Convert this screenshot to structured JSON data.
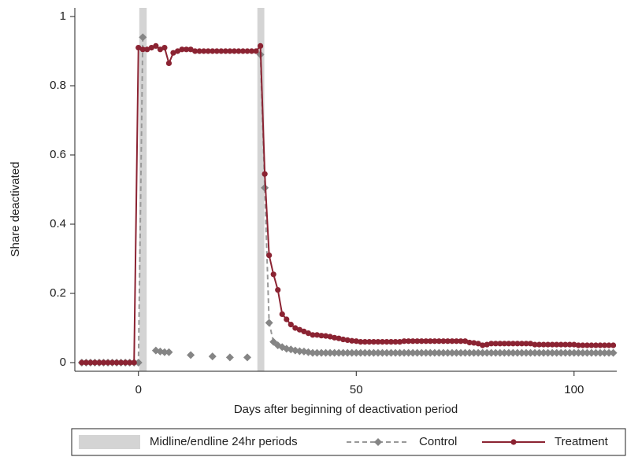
{
  "chart_data": {
    "type": "line",
    "x_label": "Days after beginning of deactivation period",
    "y_label": "Share deactivated",
    "xlim": [
      -14.6,
      109.8
    ],
    "ylim": [
      -0.025,
      1.025
    ],
    "xticks": [
      0,
      50,
      100
    ],
    "yticks": [
      0,
      0.2,
      0.4,
      0.6,
      0.8,
      1
    ],
    "shaded_periods": {
      "name": "Midline/endline 24hr periods",
      "color": "#d4d4d4",
      "ranges": [
        [
          0.2,
          1.9
        ],
        [
          27.3,
          28.9
        ]
      ]
    },
    "legend": "bottom",
    "x": [
      -13,
      -12,
      -11,
      -10,
      -9,
      -8,
      -7,
      -6,
      -5,
      -4,
      -3,
      -2,
      -1,
      0,
      1,
      2,
      3,
      4,
      5,
      6,
      7,
      8,
      9,
      10,
      11,
      12,
      13,
      14,
      15,
      16,
      17,
      18,
      19,
      20,
      21,
      22,
      23,
      24,
      25,
      26,
      27,
      28,
      29,
      30,
      31,
      32,
      33,
      34,
      35,
      36,
      37,
      38,
      39,
      40,
      41,
      42,
      43,
      44,
      45,
      46,
      47,
      48,
      49,
      50,
      51,
      52,
      53,
      54,
      55,
      56,
      57,
      58,
      59,
      60,
      61,
      62,
      63,
      64,
      65,
      66,
      67,
      68,
      69,
      70,
      71,
      72,
      73,
      74,
      75,
      76,
      77,
      78,
      79,
      80,
      81,
      82,
      83,
      84,
      85,
      86,
      87,
      88,
      89,
      90,
      91,
      92,
      93,
      94,
      95,
      96,
      97,
      98,
      99,
      100,
      101,
      102,
      103,
      104,
      105,
      106,
      107,
      108,
      109
    ],
    "series": [
      {
        "name": "Control",
        "color": "#858585",
        "dashed": true,
        "marker": "diamond",
        "values": [
          0,
          0,
          0,
          0,
          0,
          0,
          0,
          0,
          0,
          0,
          0,
          0,
          0,
          0,
          0.94,
          null,
          null,
          0.035,
          0.032,
          0.03,
          0.03,
          null,
          null,
          null,
          null,
          0.022,
          null,
          null,
          null,
          null,
          0.018,
          null,
          null,
          null,
          0.015,
          null,
          null,
          null,
          0.015,
          null,
          null,
          0.89,
          0.505,
          0.115,
          0.06,
          0.05,
          0.045,
          0.04,
          0.038,
          0.035,
          0.033,
          0.032,
          0.03,
          0.028,
          0.028,
          0.028,
          0.028,
          0.028,
          0.028,
          0.028,
          0.028,
          0.028,
          0.028,
          0.028,
          0.028,
          0.028,
          0.028,
          0.028,
          0.028,
          0.028,
          0.028,
          0.028,
          0.028,
          0.028,
          0.028,
          0.028,
          0.028,
          0.028,
          0.028,
          0.028,
          0.028,
          0.028,
          0.028,
          0.028,
          0.028,
          0.028,
          0.028,
          0.028,
          0.028,
          0.028,
          0.028,
          0.028,
          0.028,
          0.028,
          0.028,
          0.028,
          0.028,
          0.028,
          0.028,
          0.028,
          0.028,
          0.028,
          0.028,
          0.028,
          0.028,
          0.028,
          0.028,
          0.028,
          0.028,
          0.028,
          0.028,
          0.028,
          0.028,
          0.028,
          0.028,
          0.028,
          0.028,
          0.028,
          0.028,
          0.028,
          0.028,
          0.028,
          0.028
        ]
      },
      {
        "name": "Treatment",
        "color": "#8b2332",
        "dashed": false,
        "marker": "circle",
        "values": [
          0,
          0,
          0,
          0,
          0,
          0,
          0,
          0,
          0,
          0,
          0,
          0,
          0,
          0.91,
          0.905,
          0.905,
          0.91,
          0.915,
          0.905,
          0.91,
          0.865,
          0.895,
          0.9,
          0.905,
          0.905,
          0.905,
          0.9,
          0.9,
          0.9,
          0.9,
          0.9,
          0.9,
          0.9,
          0.9,
          0.9,
          0.9,
          0.9,
          0.9,
          0.9,
          0.9,
          0.9,
          0.915,
          0.545,
          0.31,
          0.255,
          0.21,
          0.14,
          0.125,
          0.11,
          0.1,
          0.095,
          0.09,
          0.085,
          0.08,
          0.08,
          0.078,
          0.077,
          0.075,
          0.072,
          0.07,
          0.067,
          0.065,
          0.063,
          0.062,
          0.06,
          0.06,
          0.06,
          0.06,
          0.06,
          0.06,
          0.06,
          0.06,
          0.06,
          0.06,
          0.062,
          0.062,
          0.062,
          0.062,
          0.062,
          0.062,
          0.062,
          0.062,
          0.062,
          0.062,
          0.062,
          0.062,
          0.062,
          0.062,
          0.062,
          0.058,
          0.057,
          0.055,
          0.05,
          0.052,
          0.055,
          0.055,
          0.055,
          0.055,
          0.055,
          0.055,
          0.055,
          0.055,
          0.055,
          0.055,
          0.052,
          0.052,
          0.052,
          0.052,
          0.052,
          0.052,
          0.052,
          0.052,
          0.052,
          0.052,
          0.05,
          0.05,
          0.05,
          0.05,
          0.05,
          0.05,
          0.05,
          0.05,
          0.05
        ]
      }
    ]
  }
}
